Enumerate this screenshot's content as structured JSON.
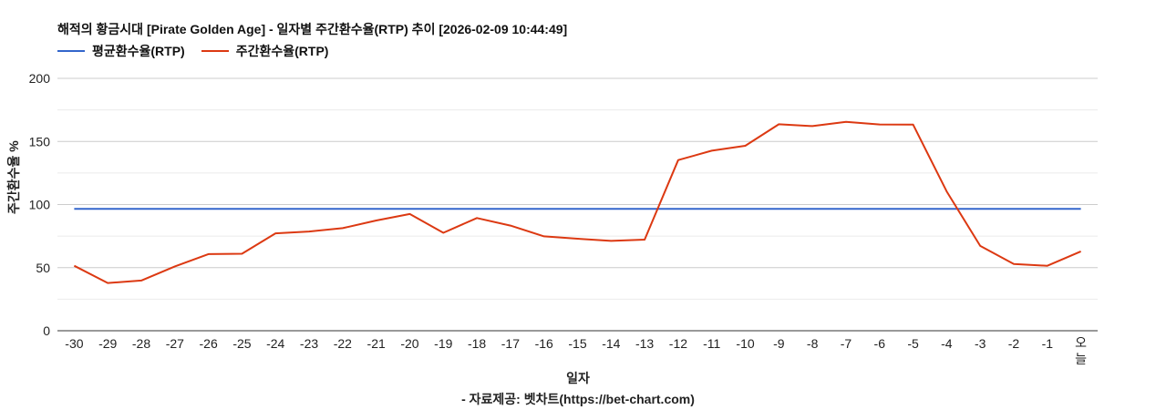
{
  "chart_data": {
    "type": "line",
    "title": "해적의 황금시대 [Pirate Golden Age] - 일자별 주간환수율(RTP) 추이 [2026-02-09 10:44:49]",
    "xlabel": "일자",
    "ylabel": "주간환수율 %",
    "footer": "- 자료제공: 벳차트(https://bet-chart.com)",
    "categories": [
      "-30",
      "-29",
      "-28",
      "-27",
      "-26",
      "-25",
      "-24",
      "-23",
      "-22",
      "-21",
      "-20",
      "-19",
      "-18",
      "-17",
      "-16",
      "-15",
      "-14",
      "-13",
      "-12",
      "-11",
      "-10",
      "-9",
      "-8",
      "-7",
      "-6",
      "-5",
      "-4",
      "-3",
      "-2",
      "-1",
      "오늘"
    ],
    "series": [
      {
        "name": "평균환수율(RTP)",
        "color": "#3366cc",
        "values": [
          96.5,
          96.5,
          96.5,
          96.5,
          96.5,
          96.5,
          96.5,
          96.5,
          96.5,
          96.5,
          96.5,
          96.5,
          96.5,
          96.5,
          96.5,
          96.5,
          96.5,
          96.5,
          96.5,
          96.5,
          96.5,
          96.5,
          96.5,
          96.5,
          96.5,
          96.5,
          96.5,
          96.5,
          96.5,
          96.5,
          96.5
        ]
      },
      {
        "name": "주간환수율(RTP)",
        "color": "#dc3912",
        "values": [
          51.5,
          37.8,
          39.8,
          51.0,
          60.7,
          61.0,
          77.2,
          78.6,
          81.3,
          87.4,
          92.5,
          77.6,
          89.3,
          83.3,
          74.8,
          72.9,
          71.2,
          72.2,
          135.2,
          142.7,
          146.6,
          163.6,
          162.2,
          165.5,
          163.5,
          163.3,
          110.4,
          67.2,
          52.9,
          51.5,
          62.9
        ]
      }
    ],
    "yticks": [
      0,
      50,
      100,
      150,
      200
    ],
    "ylim": [
      0,
      200
    ],
    "grid": true,
    "legend_position": "top"
  },
  "legend": [
    {
      "label": "평균환수율(RTP)",
      "color": "#3366cc"
    },
    {
      "label": "주간환수율(RTP)",
      "color": "#dc3912"
    }
  ]
}
